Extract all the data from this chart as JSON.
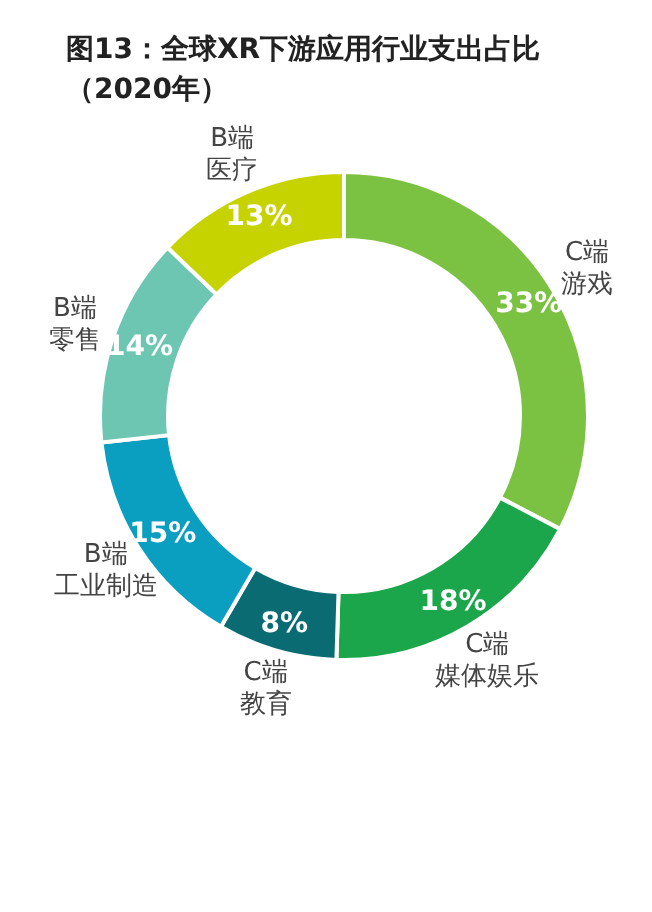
{
  "chart_data": {
    "type": "donut",
    "title": "图13：全球XR下游应用行业支出占比（2020年）",
    "categories": [
      "C端游戏",
      "C端媒体娱乐",
      "C端教育",
      "B端工业制造",
      "B端零售",
      "B端医疗"
    ],
    "values": [
      33,
      18,
      8,
      15,
      14,
      13
    ],
    "value_labels": [
      "33%",
      "18%",
      "8%",
      "15%",
      "14%",
      "13%"
    ],
    "colors": [
      "#7cc242",
      "#1ba64b",
      "#0b6b73",
      "#0a9ec0",
      "#6cc6b1",
      "#c6d300"
    ],
    "data_labels": true,
    "legend": false
  }
}
